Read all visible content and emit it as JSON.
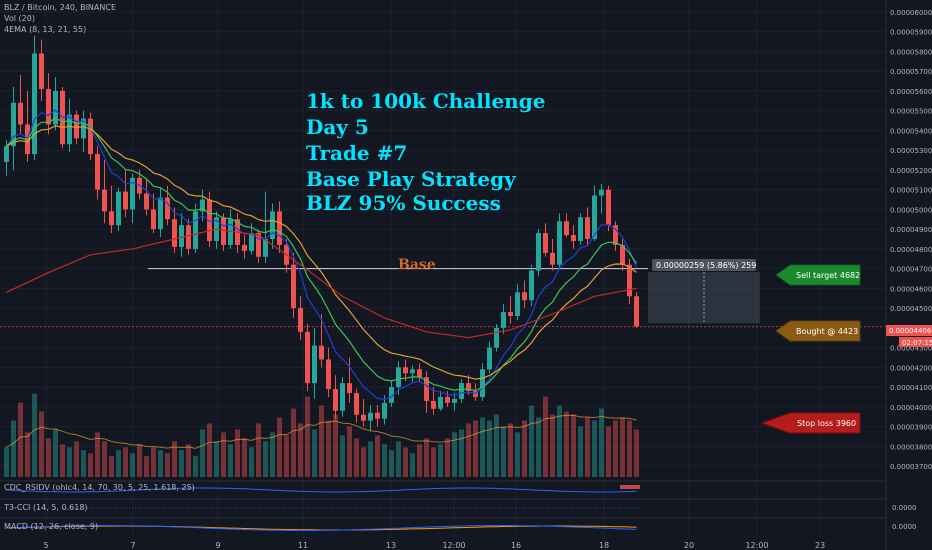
{
  "header": {
    "symbol_line": "BLZ / Bitcoin, 240, BINANCE",
    "vol_label": "Vol (20)",
    "ema_label": "4EMA (8, 13, 21, 55)"
  },
  "annotation": {
    "lines": [
      "1k to 100k Challenge",
      "Day 5",
      "Trade #7",
      "Base Play Strategy",
      "BLZ 95% Success"
    ],
    "base_label": "Base",
    "range_label": "0.00000259 (5.86%) 259"
  },
  "markers": {
    "sell_target": "Sell target 4682",
    "bought": "Bought @ 4423",
    "stop_loss": "Stop loss 3960"
  },
  "price_tag": {
    "price": "0.00004406",
    "countdown": "02:07:15"
  },
  "indicators": {
    "cdc": "CDC_RSIDV (ohlc4, 14, 70, 30, 5, 25, 1.618, 25)",
    "t3": "T3-CCI (14, 5, 0.618)",
    "t3_value": "0.0000",
    "macd": "MACD (12, 26, close, 9)",
    "macd_value": "0.0000"
  },
  "colors": {
    "background": "#131722",
    "up": "#26a69a",
    "down": "#ef5350",
    "annotation": "#00e5ff",
    "base": "#d2691e",
    "sell": "#2e7d32",
    "bought": "#8b5a14",
    "stop": "#b71c1c",
    "ema_fast": "#1e3fd6",
    "ema_mid": "#34c759",
    "ema_slow": "#e0a030",
    "ema_long": "#c62828"
  },
  "chart_data": {
    "type": "candlestick",
    "ylim": [
      3.68e-05,
      6.01e-05
    ],
    "y_ticks": [
      "0.00006000",
      "0.00005900",
      "0.00005800",
      "0.00005700",
      "0.00005600",
      "0.00005500",
      "0.00005400",
      "0.00005300",
      "0.00005200",
      "0.00005100",
      "0.00005000",
      "0.00004900",
      "0.00004800",
      "0.00004700",
      "0.00004600",
      "0.00004500",
      "0.00004300",
      "0.00004200",
      "0.00004100",
      "0.00004000",
      "0.00003900",
      "0.00003800",
      "0.00003700"
    ],
    "x_ticks": [
      "5",
      "7",
      "9",
      "11",
      "13",
      "12:00",
      "16",
      "18",
      "20",
      "12:00",
      "23"
    ],
    "candles": [
      {
        "o": 5240,
        "h": 5350,
        "l": 5170,
        "c": 5320
      },
      {
        "o": 5320,
        "h": 5620,
        "l": 5200,
        "c": 5540
      },
      {
        "o": 5540,
        "h": 5680,
        "l": 5380,
        "c": 5430
      },
      {
        "o": 5430,
        "h": 5600,
        "l": 5240,
        "c": 5280
      },
      {
        "o": 5280,
        "h": 5880,
        "l": 5250,
        "c": 5790
      },
      {
        "o": 5790,
        "h": 5860,
        "l": 5550,
        "c": 5610
      },
      {
        "o": 5610,
        "h": 5690,
        "l": 5380,
        "c": 5430
      },
      {
        "o": 5430,
        "h": 5670,
        "l": 5400,
        "c": 5600
      },
      {
        "o": 5600,
        "h": 5620,
        "l": 5310,
        "c": 5330
      },
      {
        "o": 5330,
        "h": 5560,
        "l": 5290,
        "c": 5480
      },
      {
        "o": 5480,
        "h": 5500,
        "l": 5330,
        "c": 5360
      },
      {
        "o": 5360,
        "h": 5500,
        "l": 5290,
        "c": 5460
      },
      {
        "o": 5460,
        "h": 5490,
        "l": 5250,
        "c": 5280
      },
      {
        "o": 5280,
        "h": 5320,
        "l": 5050,
        "c": 5100
      },
      {
        "o": 5100,
        "h": 5250,
        "l": 4930,
        "c": 4990
      },
      {
        "o": 4990,
        "h": 5120,
        "l": 4880,
        "c": 4920
      },
      {
        "o": 4920,
        "h": 5110,
        "l": 4890,
        "c": 5090
      },
      {
        "o": 5090,
        "h": 5200,
        "l": 4960,
        "c": 5000
      },
      {
        "o": 5000,
        "h": 5180,
        "l": 4930,
        "c": 5160
      },
      {
        "o": 5160,
        "h": 5200,
        "l": 5050,
        "c": 5080
      },
      {
        "o": 5080,
        "h": 5150,
        "l": 4970,
        "c": 5000
      },
      {
        "o": 5000,
        "h": 5080,
        "l": 4880,
        "c": 4900
      },
      {
        "o": 4900,
        "h": 5110,
        "l": 4860,
        "c": 5060
      },
      {
        "o": 5060,
        "h": 5120,
        "l": 4920,
        "c": 4950
      },
      {
        "o": 4950,
        "h": 5010,
        "l": 4780,
        "c": 4810
      },
      {
        "o": 4810,
        "h": 4980,
        "l": 4760,
        "c": 4920
      },
      {
        "o": 4920,
        "h": 4950,
        "l": 4770,
        "c": 4800
      },
      {
        "o": 4800,
        "h": 5030,
        "l": 4780,
        "c": 4990
      },
      {
        "o": 4990,
        "h": 5100,
        "l": 4940,
        "c": 5050
      },
      {
        "o": 5050,
        "h": 5090,
        "l": 4810,
        "c": 4840
      },
      {
        "o": 4840,
        "h": 4990,
        "l": 4800,
        "c": 4960
      },
      {
        "o": 4960,
        "h": 4980,
        "l": 4790,
        "c": 4820
      },
      {
        "o": 4820,
        "h": 5000,
        "l": 4800,
        "c": 4950
      },
      {
        "o": 4950,
        "h": 4980,
        "l": 4780,
        "c": 4820
      },
      {
        "o": 4820,
        "h": 4870,
        "l": 4750,
        "c": 4790
      },
      {
        "o": 4790,
        "h": 4930,
        "l": 4770,
        "c": 4880
      },
      {
        "o": 4880,
        "h": 4900,
        "l": 4730,
        "c": 4760
      },
      {
        "o": 4760,
        "h": 5090,
        "l": 4730,
        "c": 4850
      },
      {
        "o": 4850,
        "h": 5030,
        "l": 4800,
        "c": 4990
      },
      {
        "o": 4990,
        "h": 5040,
        "l": 4780,
        "c": 4820
      },
      {
        "o": 4820,
        "h": 4850,
        "l": 4680,
        "c": 4720
      },
      {
        "o": 4720,
        "h": 4780,
        "l": 4450,
        "c": 4500
      },
      {
        "o": 4500,
        "h": 4560,
        "l": 4340,
        "c": 4380
      },
      {
        "o": 4380,
        "h": 4420,
        "l": 4080,
        "c": 4120
      },
      {
        "o": 4120,
        "h": 4400,
        "l": 4040,
        "c": 4310
      },
      {
        "o": 4310,
        "h": 4470,
        "l": 4200,
        "c": 4240
      },
      {
        "o": 4240,
        "h": 4300,
        "l": 4050,
        "c": 4090
      },
      {
        "o": 4090,
        "h": 4160,
        "l": 3940,
        "c": 3980
      },
      {
        "o": 3980,
        "h": 4150,
        "l": 3950,
        "c": 4120
      },
      {
        "o": 4120,
        "h": 4250,
        "l": 4020,
        "c": 4070
      },
      {
        "o": 4070,
        "h": 4090,
        "l": 3920,
        "c": 3960
      },
      {
        "o": 3960,
        "h": 4040,
        "l": 3900,
        "c": 3930
      },
      {
        "o": 3930,
        "h": 4010,
        "l": 3880,
        "c": 3970
      },
      {
        "o": 3970,
        "h": 4010,
        "l": 3900,
        "c": 3940
      },
      {
        "o": 3940,
        "h": 4060,
        "l": 3910,
        "c": 4020
      },
      {
        "o": 4020,
        "h": 4130,
        "l": 4000,
        "c": 4100
      },
      {
        "o": 4100,
        "h": 4230,
        "l": 4060,
        "c": 4200
      },
      {
        "o": 4200,
        "h": 4240,
        "l": 4130,
        "c": 4170
      },
      {
        "o": 4170,
        "h": 4210,
        "l": 4120,
        "c": 4190
      },
      {
        "o": 4190,
        "h": 4220,
        "l": 4130,
        "c": 4150
      },
      {
        "o": 4150,
        "h": 4180,
        "l": 3970,
        "c": 4030
      },
      {
        "o": 4030,
        "h": 4100,
        "l": 3960,
        "c": 3990
      },
      {
        "o": 3990,
        "h": 4080,
        "l": 3980,
        "c": 4050
      },
      {
        "o": 4050,
        "h": 4080,
        "l": 4000,
        "c": 4020
      },
      {
        "o": 4020,
        "h": 4070,
        "l": 3980,
        "c": 4040
      },
      {
        "o": 4040,
        "h": 4140,
        "l": 4020,
        "c": 4120
      },
      {
        "o": 4120,
        "h": 4160,
        "l": 4060,
        "c": 4080
      },
      {
        "o": 4080,
        "h": 4120,
        "l": 4030,
        "c": 4050
      },
      {
        "o": 4050,
        "h": 4220,
        "l": 4030,
        "c": 4190
      },
      {
        "o": 4190,
        "h": 4330,
        "l": 4170,
        "c": 4300
      },
      {
        "o": 4300,
        "h": 4420,
        "l": 4280,
        "c": 4400
      },
      {
        "o": 4400,
        "h": 4520,
        "l": 4370,
        "c": 4480
      },
      {
        "o": 4480,
        "h": 4560,
        "l": 4420,
        "c": 4460
      },
      {
        "o": 4460,
        "h": 4620,
        "l": 4440,
        "c": 4580
      },
      {
        "o": 4580,
        "h": 4640,
        "l": 4500,
        "c": 4540
      },
      {
        "o": 4540,
        "h": 4720,
        "l": 4510,
        "c": 4690
      },
      {
        "o": 4690,
        "h": 4900,
        "l": 4660,
        "c": 4880
      },
      {
        "o": 4880,
        "h": 4930,
        "l": 4760,
        "c": 4780
      },
      {
        "o": 4780,
        "h": 4850,
        "l": 4690,
        "c": 4720
      },
      {
        "o": 4720,
        "h": 4980,
        "l": 4700,
        "c": 4940
      },
      {
        "o": 4940,
        "h": 4980,
        "l": 4860,
        "c": 4870
      },
      {
        "o": 4870,
        "h": 4920,
        "l": 4800,
        "c": 4840
      },
      {
        "o": 4840,
        "h": 4980,
        "l": 4820,
        "c": 4960
      },
      {
        "o": 4960,
        "h": 5010,
        "l": 4820,
        "c": 4850
      },
      {
        "o": 4850,
        "h": 5120,
        "l": 4840,
        "c": 5070
      },
      {
        "o": 5070,
        "h": 5130,
        "l": 4980,
        "c": 5100
      },
      {
        "o": 5100,
        "h": 5120,
        "l": 4890,
        "c": 4920
      },
      {
        "o": 4920,
        "h": 4940,
        "l": 4790,
        "c": 4820
      },
      {
        "o": 4820,
        "h": 4850,
        "l": 4690,
        "c": 4720
      },
      {
        "o": 4720,
        "h": 4750,
        "l": 4520,
        "c": 4560
      },
      {
        "o": 4560,
        "h": 4580,
        "l": 4400,
        "c": 4406
      }
    ],
    "volume_max": 4200,
    "volumes": [
      1000,
      1900,
      2500,
      1500,
      2800,
      2200,
      1300,
      1600,
      1100,
      1000,
      1200,
      900,
      800,
      1500,
      1200,
      700,
      900,
      1000,
      800,
      1100,
      700,
      1000,
      900,
      800,
      1200,
      900,
      1100,
      700,
      1600,
      1800,
      1200,
      1500,
      1100,
      1600,
      1300,
      1000,
      1800,
      1200,
      1500,
      2000,
      1400,
      2300,
      1800,
      2700,
      1600,
      2400,
      1900,
      2100,
      1400,
      1700,
      1300,
      1000,
      1200,
      1400,
      1100,
      900,
      1200,
      1000,
      800,
      1100,
      1300,
      1000,
      1100,
      1300,
      1500,
      1600,
      1800,
      1900,
      2000,
      1900,
      2100,
      1700,
      1800,
      1500,
      1900,
      2400,
      2000,
      2700,
      2100,
      2400,
      2200,
      2100,
      1700,
      2000,
      1900,
      2300,
      1700,
      1900,
      2000,
      1900,
      1600
    ],
    "ema_long_points": [
      [
        0,
        4580
      ],
      [
        6,
        4680
      ],
      [
        12,
        4770
      ],
      [
        18,
        4800
      ],
      [
        24,
        4850
      ],
      [
        30,
        4900
      ],
      [
        36,
        4870
      ],
      [
        42,
        4720
      ],
      [
        48,
        4560
      ],
      [
        54,
        4450
      ],
      [
        60,
        4380
      ],
      [
        66,
        4350
      ],
      [
        72,
        4390
      ],
      [
        78,
        4470
      ],
      [
        84,
        4560
      ],
      [
        90,
        4600
      ]
    ]
  }
}
